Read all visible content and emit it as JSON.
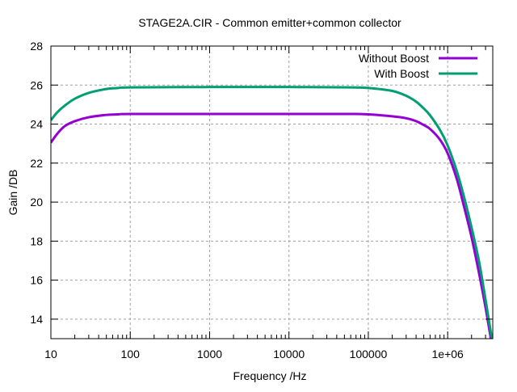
{
  "chart_data": {
    "type": "line",
    "title": "STAGE2A.CIR - Common emitter+common collector",
    "xlabel": "Frequency /Hz",
    "ylabel": "Gain /DB",
    "xscale": "log",
    "xlim": [
      10,
      3700000
    ],
    "ylim": [
      13,
      28
    ],
    "xticks": [
      10,
      100,
      1000,
      10000,
      100000,
      1000000
    ],
    "xtick_labels": [
      "10",
      "100",
      "1000",
      "10000",
      "100000",
      "1e+06"
    ],
    "yticks": [
      14,
      16,
      18,
      20,
      22,
      24,
      26,
      28
    ],
    "ytick_labels": [
      "14",
      "16",
      "18",
      "20",
      "22",
      "24",
      "26",
      "28"
    ],
    "grid": true,
    "legend_position": "top-right",
    "series": [
      {
        "name": "Without Boost",
        "color": "#9400d3",
        "x": [
          10,
          12,
          15,
          20,
          30,
          50,
          70,
          100,
          1000,
          10000,
          60000,
          100000,
          200000,
          300000,
          400000,
          500000,
          600000,
          800000,
          1000000,
          1300000,
          1600000,
          2000000,
          2500000,
          3000000,
          3500000
        ],
        "y": [
          23.05,
          23.5,
          23.9,
          24.15,
          24.35,
          24.47,
          24.5,
          24.52,
          24.52,
          24.52,
          24.52,
          24.5,
          24.4,
          24.3,
          24.15,
          23.95,
          23.75,
          23.2,
          22.5,
          21.2,
          19.8,
          18.2,
          16.3,
          14.6,
          13.0
        ]
      },
      {
        "name": "With Boost",
        "color": "#009e73",
        "x": [
          10,
          12,
          15,
          20,
          30,
          50,
          70,
          100,
          1000,
          10000,
          60000,
          100000,
          200000,
          300000,
          400000,
          500000,
          600000,
          800000,
          1000000,
          1300000,
          1600000,
          2000000,
          2500000,
          3000000,
          3600000
        ],
        "y": [
          24.2,
          24.6,
          24.95,
          25.3,
          25.6,
          25.8,
          25.85,
          25.88,
          25.9,
          25.9,
          25.88,
          25.85,
          25.7,
          25.45,
          25.15,
          24.8,
          24.45,
          23.7,
          22.9,
          21.6,
          20.3,
          18.7,
          16.9,
          15.0,
          13.0
        ]
      }
    ]
  }
}
